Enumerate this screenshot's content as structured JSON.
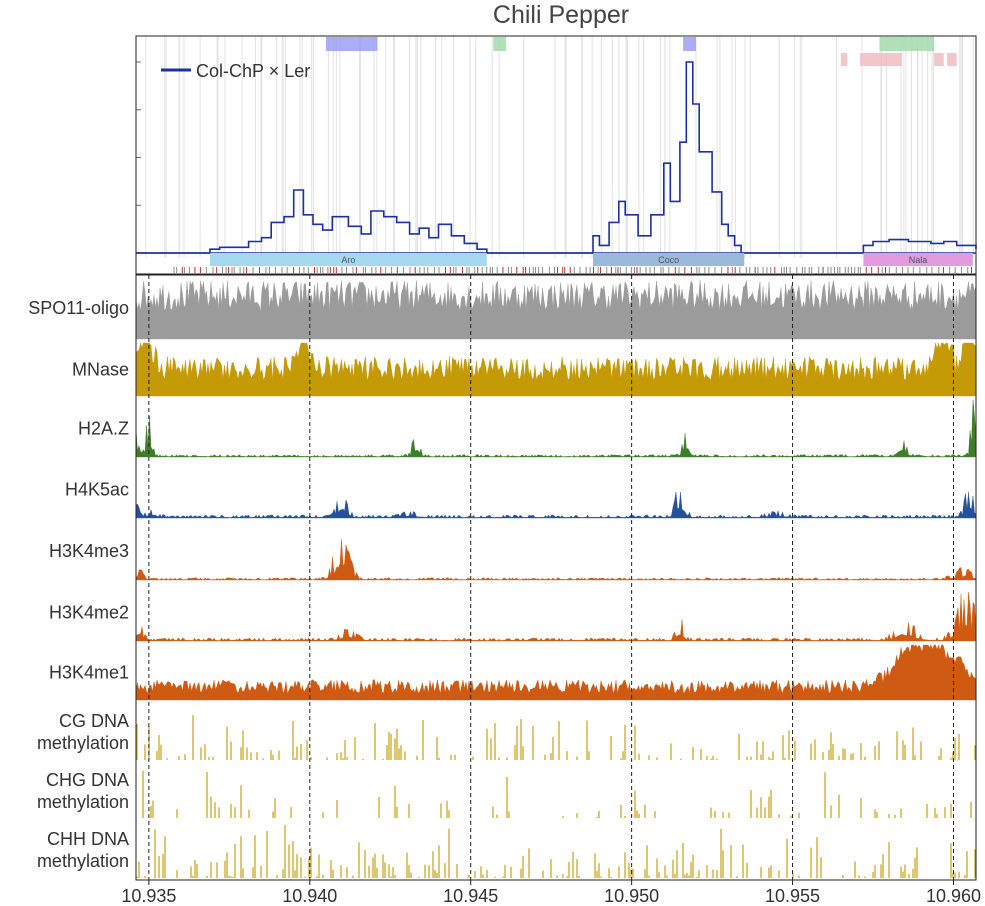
{
  "chart_data": {
    "type": "area",
    "title": "Chili Pepper",
    "x_ticks": [
      10.935,
      10.94,
      10.945,
      10.95,
      10.955,
      10.96
    ],
    "x_tick_labels": [
      "10.935",
      "10.940",
      "10.945",
      "10.950",
      "10.955",
      "10.960"
    ],
    "xlim": [
      10.9346,
      10.9607
    ],
    "dashed_lines_x": [
      10.935,
      10.94,
      10.945,
      10.95,
      10.955,
      10.96
    ],
    "crossover_panel": {
      "legend": "Col-ChP × Ler",
      "line_color": "#1c2fa8",
      "ylim": [
        0,
        1
      ],
      "yticks": [
        0,
        0.25,
        0.5,
        0.75,
        1.0
      ],
      "step_x": [
        10.9346,
        10.9369,
        10.9372,
        10.9381,
        10.9385,
        10.9388,
        10.9392,
        10.9395,
        10.9398,
        10.9401,
        10.9404,
        10.9407,
        10.9412,
        10.9416,
        10.9419,
        10.9423,
        10.9427,
        10.9431,
        10.9434,
        10.9437,
        10.944,
        10.9444,
        10.9448,
        10.9452,
        10.9455,
        10.9488,
        10.949,
        10.9493,
        10.9496,
        10.9498,
        10.9502,
        10.9506,
        10.951,
        10.9512,
        10.9515,
        10.9517,
        10.9519,
        10.9521,
        10.9525,
        10.9528,
        10.953,
        10.9532,
        10.9534,
        10.9572,
        10.9575,
        10.958,
        10.9586,
        10.9593,
        10.9597,
        10.9601,
        10.9607
      ],
      "step_y": [
        0.0,
        0.02,
        0.03,
        0.06,
        0.08,
        0.16,
        0.19,
        0.33,
        0.2,
        0.15,
        0.12,
        0.19,
        0.14,
        0.1,
        0.22,
        0.19,
        0.16,
        0.1,
        0.13,
        0.08,
        0.15,
        0.09,
        0.05,
        0.02,
        0.0,
        0.09,
        0.04,
        0.16,
        0.27,
        0.2,
        0.09,
        0.2,
        0.47,
        0.27,
        0.58,
        1.0,
        0.78,
        0.53,
        0.32,
        0.15,
        0.09,
        0.04,
        0.0,
        0.04,
        0.06,
        0.07,
        0.06,
        0.05,
        0.06,
        0.04,
        0.02
      ],
      "top_bands_blue": [
        [
          10.9405,
          10.9421
        ],
        [
          10.9516,
          10.952
        ]
      ],
      "top_bands_green": [
        [
          10.9457,
          10.9461
        ],
        [
          10.9577,
          10.9594
        ]
      ],
      "top_bands_pink": [
        [
          10.9565,
          10.9567
        ],
        [
          10.9571,
          10.9577
        ],
        [
          10.9577,
          10.9584
        ],
        [
          10.9594,
          10.9597
        ],
        [
          10.9598,
          10.9601
        ]
      ],
      "genes": [
        {
          "name": "Aro",
          "start": 10.9369,
          "end": 10.9455,
          "color": "#a6d8f0"
        },
        {
          "name": "Coco",
          "start": 10.9488,
          "end": 10.9535,
          "color": "#9cb9dc"
        },
        {
          "name": "Nala",
          "start": 10.9572,
          "end": 10.9606,
          "color": "#e39be0"
        }
      ]
    },
    "tracks": [
      {
        "name": "SPO11-oligo",
        "color": "#9b9b9b",
        "lines": [
          "SPO11-oligo"
        ],
        "kind": "fill"
      },
      {
        "name": "MNase",
        "color": "#c49a06",
        "lines": [
          "MNase"
        ],
        "kind": "fill"
      },
      {
        "name": "H2A.Z",
        "color": "#3f7d2a",
        "lines": [
          "H2A.Z"
        ],
        "kind": "fill"
      },
      {
        "name": "H4K5ac",
        "color": "#26519a",
        "lines": [
          "H4K5ac"
        ],
        "kind": "fill"
      },
      {
        "name": "H3K4me3",
        "color": "#cf5a12",
        "lines": [
          "H3K4me3"
        ],
        "kind": "fill"
      },
      {
        "name": "H3K4me2",
        "color": "#cf5a12",
        "lines": [
          "H3K4me2"
        ],
        "kind": "fill"
      },
      {
        "name": "H3K4me1",
        "color": "#cf5a12",
        "lines": [
          "H3K4me1"
        ],
        "kind": "fill"
      },
      {
        "name": "CG DNA methylation",
        "color": "#c9a014",
        "lines": [
          "CG DNA",
          "methylation"
        ],
        "kind": "bars"
      },
      {
        "name": "CHG DNA methylation",
        "color": "#c9a014",
        "lines": [
          "CHG DNA",
          "methylation"
        ],
        "kind": "bars"
      },
      {
        "name": "CHH DNA methylation",
        "color": "#c9a014",
        "lines": [
          "CHH DNA",
          "methylation"
        ],
        "kind": "bars"
      }
    ]
  }
}
